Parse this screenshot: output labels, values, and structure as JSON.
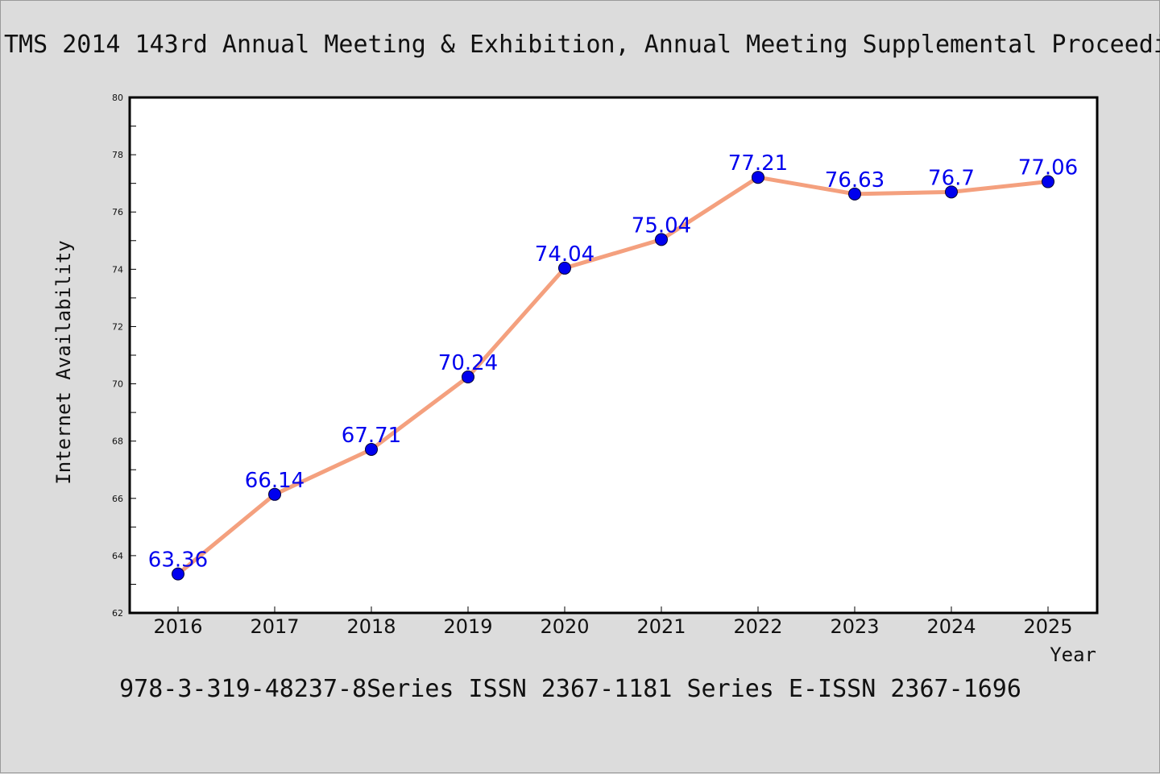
{
  "colors": {
    "background": "#dcdcdc",
    "plot_background": "#ffffff",
    "line": "#f4a07e",
    "marker": "#0000ee",
    "data_label": "#0000ee",
    "axis": "#000000"
  },
  "chart_data": {
    "type": "line",
    "title": "TMS 2014 143rd Annual Meeting & Exhibition, Annual Meeting Supplemental Proceedi",
    "footer": "978-3-319-48237-8Series ISSN 2367-1181 Series E-ISSN 2367-1696",
    "xlabel": "Year",
    "ylabel": "Internet Availability",
    "categories": [
      "2016",
      "2017",
      "2018",
      "2019",
      "2020",
      "2021",
      "2022",
      "2023",
      "2024",
      "2025"
    ],
    "series": [
      {
        "values": [
          63.36,
          66.14,
          67.71,
          70.24,
          74.04,
          75.04,
          77.21,
          76.63,
          76.7,
          77.06
        ],
        "labels": [
          "63.36",
          "66.14",
          "67.71",
          "70.24",
          "74.04",
          "75.04",
          "77.21",
          "76.63",
          "76.7",
          "77.06"
        ]
      }
    ],
    "ylim": [
      62,
      80
    ],
    "yticks": [
      "62",
      "64",
      "66",
      "68",
      "70",
      "72",
      "74",
      "76",
      "78",
      "80"
    ],
    "grid": false,
    "legend": "none"
  }
}
